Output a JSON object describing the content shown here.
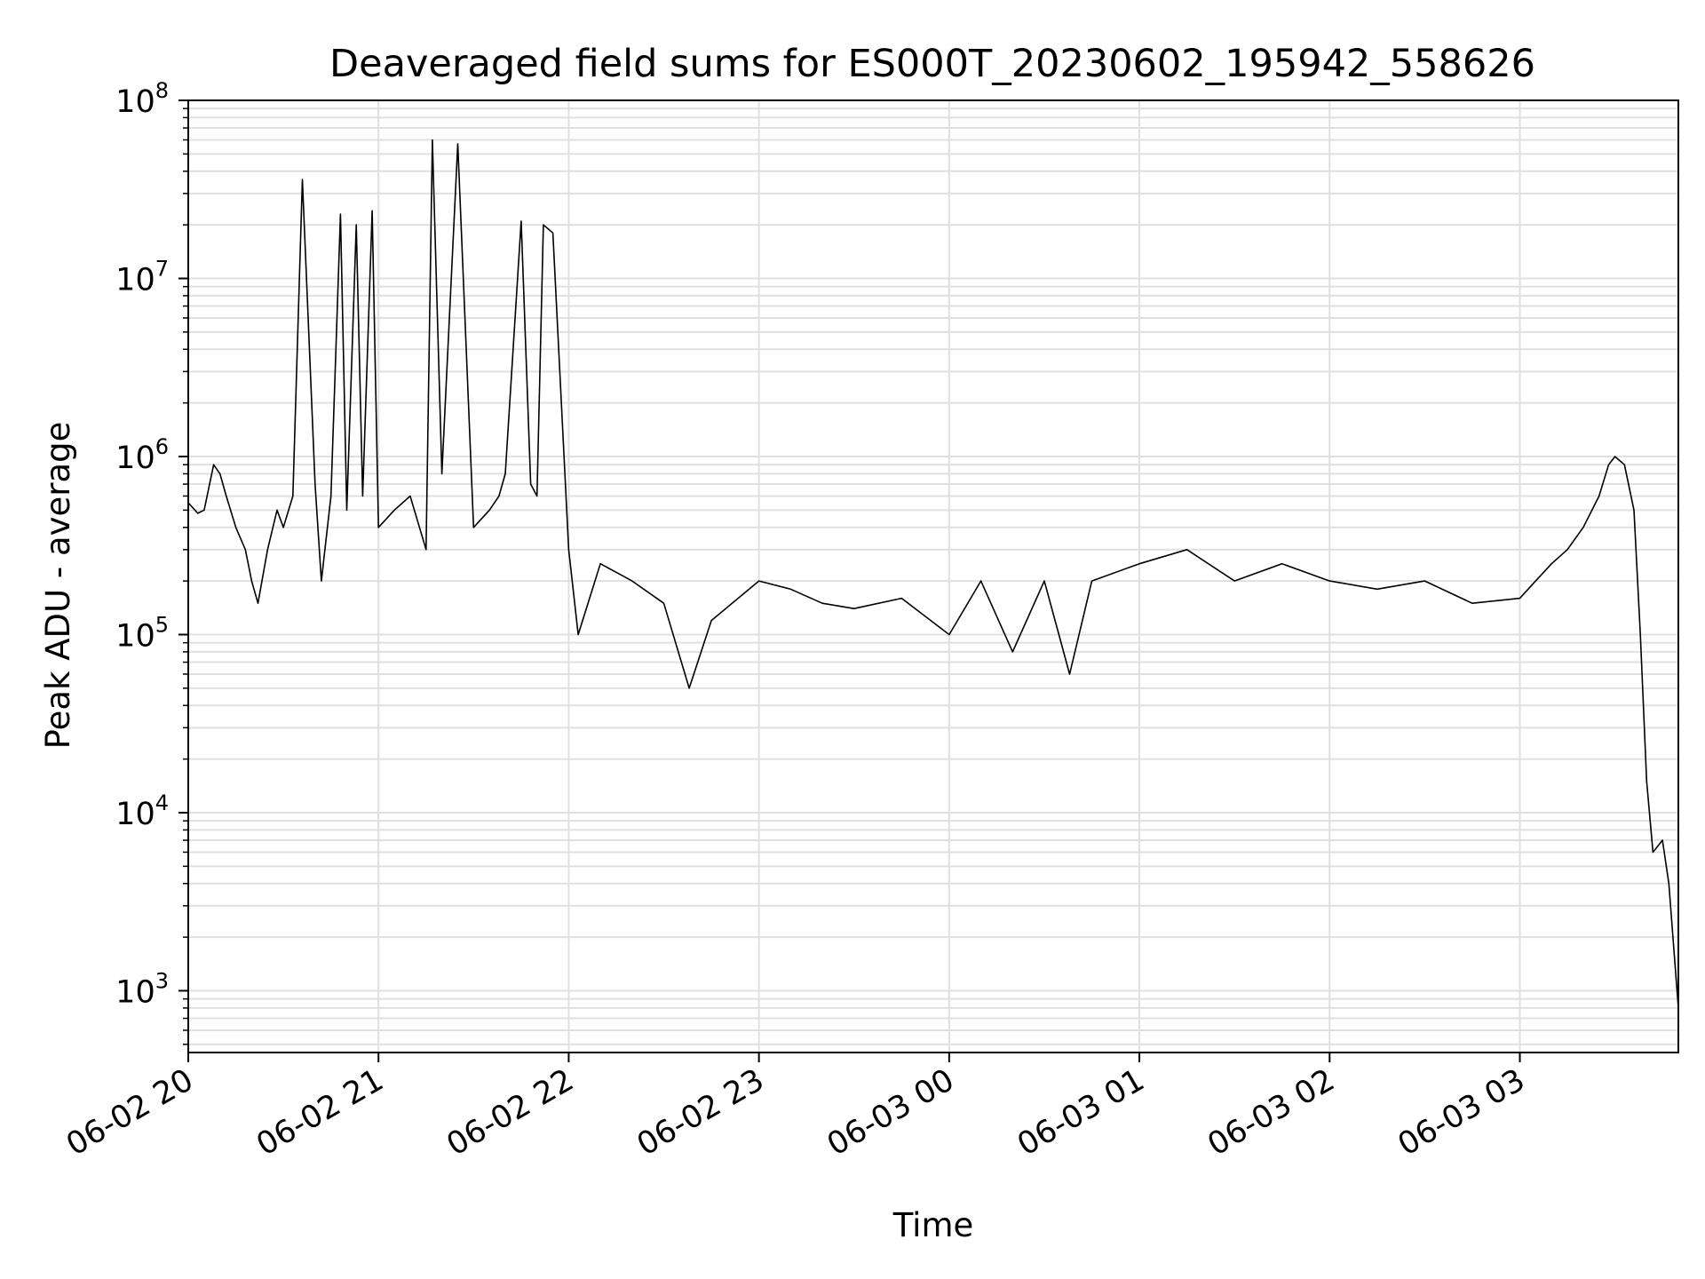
{
  "chart_data": {
    "type": "line",
    "title": "Deaveraged field sums for ES000T_20230602_195942_558626",
    "xlabel": "Time",
    "ylabel": "Peak ADU - average",
    "yscale": "log",
    "ylim": [
      450,
      100000000
    ],
    "xlim": [
      "06-02 20:00",
      "06-03 03:50"
    ],
    "x_ticks": [
      "06-02 20",
      "06-02 21",
      "06-02 22",
      "06-02 23",
      "06-03 00",
      "06-03 01",
      "06-03 02",
      "06-03 03"
    ],
    "y_ticks": [
      {
        "value": 1000,
        "base": "10",
        "exp": "3"
      },
      {
        "value": 10000,
        "base": "10",
        "exp": "4"
      },
      {
        "value": 100000,
        "base": "10",
        "exp": "5"
      },
      {
        "value": 1000000,
        "base": "10",
        "exp": "6"
      },
      {
        "value": 10000000,
        "base": "10",
        "exp": "7"
      },
      {
        "value": 100000000,
        "base": "10",
        "exp": "8"
      }
    ],
    "grid": true,
    "line_color": "#000000",
    "grid_color": "#e0e0e0",
    "series": [
      {
        "x": [
          "06-02 20:00",
          "06-02 20:03",
          "06-02 20:05",
          "06-02 20:08",
          "06-02 20:10",
          "06-02 20:12",
          "06-02 20:15",
          "06-02 20:18",
          "06-02 20:20",
          "06-02 20:22",
          "06-02 20:25",
          "06-02 20:28",
          "06-02 20:30",
          "06-02 20:33",
          "06-02 20:36",
          "06-02 20:40",
          "06-02 20:42",
          "06-02 20:45",
          "06-02 20:48",
          "06-02 20:50",
          "06-02 20:53",
          "06-02 20:55",
          "06-02 20:58",
          "06-02 21:00",
          "06-02 21:05",
          "06-02 21:10",
          "06-02 21:15",
          "06-02 21:17",
          "06-02 21:20",
          "06-02 21:25",
          "06-02 21:30",
          "06-02 21:35",
          "06-02 21:38",
          "06-02 21:40",
          "06-02 21:45",
          "06-02 21:48",
          "06-02 21:50",
          "06-02 21:52",
          "06-02 21:55",
          "06-02 22:00",
          "06-02 22:03",
          "06-02 22:10",
          "06-02 22:20",
          "06-02 22:30",
          "06-02 22:38",
          "06-02 22:45",
          "06-02 23:00",
          "06-02 23:10",
          "06-02 23:20",
          "06-02 23:30",
          "06-02 23:45",
          "06-03 00:00",
          "06-03 00:10",
          "06-03 00:20",
          "06-03 00:30",
          "06-03 00:38",
          "06-03 00:45",
          "06-03 01:00",
          "06-03 01:15",
          "06-03 01:30",
          "06-03 01:45",
          "06-03 02:00",
          "06-03 02:15",
          "06-03 02:30",
          "06-03 02:45",
          "06-03 03:00",
          "06-03 03:05",
          "06-03 03:10",
          "06-03 03:15",
          "06-03 03:20",
          "06-03 03:25",
          "06-03 03:28",
          "06-03 03:30",
          "06-03 03:33",
          "06-03 03:36",
          "06-03 03:38",
          "06-03 03:40",
          "06-03 03:42",
          "06-03 03:45",
          "06-03 03:47",
          "06-03 03:50"
        ],
        "y": [
          550000,
          480000,
          500000,
          900000,
          800000,
          600000,
          400000,
          300000,
          200000,
          150000,
          300000,
          500000,
          400000,
          600000,
          36000000,
          700000,
          200000,
          600000,
          23000000,
          500000,
          20000000,
          600000,
          24000000,
          400000,
          500000,
          600000,
          300000,
          60000000,
          800000,
          57000000,
          400000,
          500000,
          600000,
          800000,
          21000000,
          700000,
          600000,
          20000000,
          18000000,
          300000,
          100000,
          250000,
          200000,
          150000,
          50000,
          120000,
          200000,
          180000,
          150000,
          140000,
          160000,
          100000,
          200000,
          80000,
          200000,
          60000,
          200000,
          250000,
          300000,
          200000,
          250000,
          200000,
          180000,
          200000,
          150000,
          160000,
          200000,
          250000,
          300000,
          400000,
          600000,
          900000,
          1000000,
          900000,
          500000,
          100000,
          15000,
          6000,
          7000,
          4000,
          800
        ]
      }
    ]
  }
}
